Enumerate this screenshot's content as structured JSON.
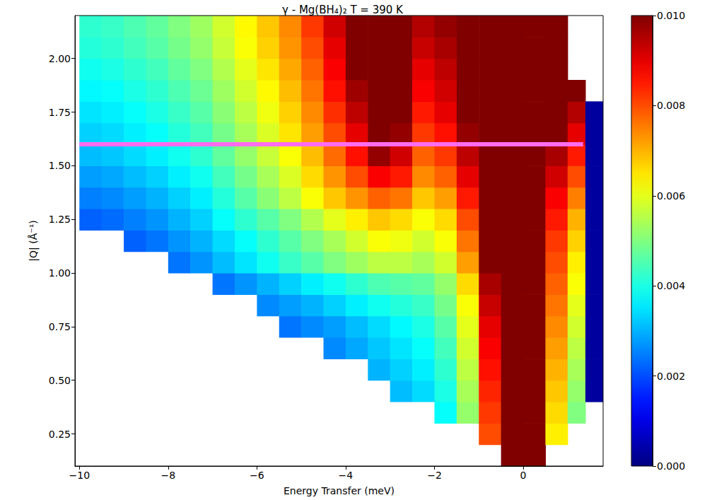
{
  "chart_data": {
    "type": "heatmap",
    "title": "γ - Mg(BH₄)₂ T = 390 K",
    "x_label": "Energy Transfer (meV)",
    "y_label": "|Q| (Å⁻¹)",
    "xlim": [
      -10.1,
      1.8
    ],
    "xticks": [
      {
        "value": -10,
        "label": "−10"
      },
      {
        "value": -8,
        "label": "−8"
      },
      {
        "value": -6,
        "label": "−6"
      },
      {
        "value": -4,
        "label": "−4"
      },
      {
        "value": -2,
        "label": "−2"
      },
      0
    ],
    "ylim": [
      0.1,
      2.2
    ],
    "yticks": [
      0.25,
      {
        "value": 0.5,
        "label": "0.50"
      },
      0.75,
      {
        "value": 1.0,
        "label": "1.00"
      },
      1.25,
      {
        "value": 1.5,
        "label": "1.50"
      },
      1.75,
      {
        "value": 2.0,
        "label": "2.00"
      }
    ],
    "x_edges": [
      -10,
      -9.5,
      -9,
      -8.5,
      -8,
      -7.5,
      -7,
      -6.5,
      -6,
      -5.5,
      -5,
      -4.5,
      -4,
      -3.5,
      -3,
      -2.5,
      -2,
      -1.5,
      -1,
      -0.5,
      0,
      0.5,
      1.0,
      1.4,
      1.8
    ],
    "y_edges": [
      0.1,
      0.2,
      0.3,
      0.4,
      0.5,
      0.6,
      0.7,
      0.8,
      0.9,
      1.0,
      1.1,
      1.2,
      1.3,
      1.4,
      1.5,
      1.6,
      1.7,
      1.8,
      1.9,
      2.0,
      2.1,
      2.2
    ],
    "cells": [
      [
        null,
        null,
        null,
        null,
        null,
        null,
        null,
        null,
        null,
        null,
        null,
        null,
        null,
        null,
        null,
        null,
        null,
        null,
        null,
        0.03,
        0.03,
        null,
        null,
        null
      ],
      [
        null,
        null,
        null,
        null,
        null,
        null,
        null,
        null,
        null,
        null,
        null,
        null,
        null,
        null,
        null,
        null,
        null,
        null,
        0.008,
        0.03,
        0.03,
        0.0064,
        null,
        null
      ],
      [
        null,
        null,
        null,
        null,
        null,
        null,
        null,
        null,
        null,
        null,
        null,
        null,
        null,
        null,
        null,
        null,
        0.0038,
        0.0052,
        0.0082,
        0.03,
        0.03,
        0.0066,
        0.005,
        null
      ],
      [
        null,
        null,
        null,
        null,
        null,
        null,
        null,
        null,
        null,
        null,
        null,
        null,
        null,
        null,
        0.0031,
        0.0034,
        0.004,
        0.0054,
        0.0084,
        0.03,
        0.03,
        0.0068,
        0.0052,
        0.0003
      ],
      [
        null,
        null,
        null,
        null,
        null,
        null,
        null,
        null,
        null,
        null,
        null,
        null,
        null,
        0.003,
        0.0033,
        0.0036,
        0.0042,
        0.0056,
        0.0086,
        0.03,
        0.03,
        0.007,
        0.0054,
        0.0003
      ],
      [
        null,
        null,
        null,
        null,
        null,
        null,
        null,
        null,
        null,
        null,
        null,
        0.0026,
        0.0029,
        0.0032,
        0.0035,
        0.0038,
        0.0044,
        0.0058,
        0.0088,
        0.03,
        0.03,
        0.0072,
        0.0056,
        0.0003
      ],
      [
        null,
        null,
        null,
        null,
        null,
        null,
        null,
        null,
        null,
        0.0024,
        0.0026,
        0.0028,
        0.0031,
        0.0034,
        0.0037,
        0.004,
        0.0046,
        0.006,
        0.009,
        0.03,
        0.03,
        0.0074,
        0.0058,
        0.0003
      ],
      [
        null,
        null,
        null,
        null,
        null,
        null,
        null,
        null,
        0.0026,
        0.0028,
        0.003,
        0.0033,
        0.0036,
        0.0039,
        0.0041,
        0.0043,
        0.0049,
        0.0062,
        0.0093,
        0.03,
        0.03,
        0.0076,
        0.006,
        0.0003
      ],
      [
        null,
        null,
        null,
        null,
        null,
        null,
        0.0024,
        0.0027,
        0.003,
        0.0033,
        0.0036,
        0.0039,
        0.0042,
        0.0045,
        0.0046,
        0.0047,
        0.0052,
        0.0066,
        0.0096,
        0.03,
        0.03,
        0.0078,
        0.0062,
        0.0003
      ],
      [
        null,
        null,
        null,
        null,
        0.0024,
        0.0027,
        0.0031,
        0.0035,
        0.0039,
        0.0043,
        0.0046,
        0.005,
        0.0053,
        0.0056,
        0.0056,
        0.0054,
        0.0058,
        0.0072,
        0.01,
        0.03,
        0.03,
        0.008,
        0.0064,
        0.0003
      ],
      [
        null,
        null,
        0.0022,
        0.0024,
        0.0027,
        0.003,
        0.0034,
        0.0038,
        0.0042,
        0.0046,
        0.005,
        0.0054,
        0.0058,
        0.0062,
        0.0061,
        0.0058,
        0.0062,
        0.0076,
        0.0105,
        0.03,
        0.03,
        0.0082,
        0.0067,
        0.0003
      ],
      [
        0.0022,
        0.0023,
        0.0025,
        0.0027,
        0.003,
        0.0033,
        0.0038,
        0.0042,
        0.0046,
        0.005,
        0.0055,
        0.006,
        0.0064,
        0.0068,
        0.0066,
        0.0062,
        0.0066,
        0.008,
        0.011,
        0.03,
        0.03,
        0.0085,
        0.007,
        0.0003
      ],
      [
        0.0025,
        0.0026,
        0.0028,
        0.003,
        0.0033,
        0.0036,
        0.0041,
        0.0046,
        0.0051,
        0.0056,
        0.0062,
        0.0068,
        0.0073,
        0.0078,
        0.0076,
        0.0068,
        0.0072,
        0.0085,
        0.012,
        0.03,
        0.03,
        0.0088,
        0.0075,
        0.0003
      ],
      [
        0.0028,
        0.0029,
        0.0031,
        0.0033,
        0.0036,
        0.0039,
        0.0044,
        0.0049,
        0.0054,
        0.0059,
        0.0066,
        0.0073,
        0.008,
        0.0088,
        0.0085,
        0.0074,
        0.0078,
        0.009,
        0.013,
        0.03,
        0.03,
        0.0092,
        0.008,
        0.0003
      ],
      [
        0.0031,
        0.0032,
        0.0034,
        0.0036,
        0.0039,
        0.0042,
        0.0047,
        0.0052,
        0.0057,
        0.0062,
        0.0069,
        0.0077,
        0.0086,
        0.0098,
        0.0092,
        0.0078,
        0.0082,
        0.0094,
        0.014,
        0.03,
        0.03,
        0.0096,
        0.0085,
        0.0003
      ],
      [
        0.0033,
        0.0034,
        0.0036,
        0.0038,
        0.0041,
        0.0044,
        0.0049,
        0.0054,
        0.0059,
        0.0065,
        0.0072,
        0.008,
        0.009,
        0.0108,
        0.0098,
        0.0082,
        0.0086,
        0.0098,
        0.015,
        0.03,
        0.03,
        0.01,
        0.009,
        0.0003
      ],
      [
        0.0035,
        0.0036,
        0.0038,
        0.004,
        0.0043,
        0.0046,
        0.0051,
        0.0056,
        0.0061,
        0.0067,
        0.0074,
        0.0083,
        0.0094,
        0.0118,
        0.0105,
        0.0085,
        0.009,
        0.0102,
        0.015,
        0.03,
        0.03,
        0.0105,
        0.0095,
        0.0003
      ],
      [
        0.0037,
        0.0038,
        0.004,
        0.0042,
        0.0045,
        0.0048,
        0.0053,
        0.0058,
        0.0063,
        0.0069,
        0.0076,
        0.0086,
        0.0097,
        0.0125,
        0.0112,
        0.0088,
        0.0092,
        0.0106,
        0.015,
        0.03,
        0.03,
        0.011,
        0.01,
        null
      ],
      [
        0.0039,
        0.004,
        0.0042,
        0.0044,
        0.0047,
        0.005,
        0.0055,
        0.006,
        0.0065,
        0.0071,
        0.0078,
        0.0088,
        0.01,
        0.013,
        0.0118,
        0.009,
        0.0094,
        0.011,
        0.015,
        0.03,
        0.03,
        0.0115,
        null,
        null
      ],
      [
        0.0041,
        0.0042,
        0.0044,
        0.0046,
        0.0049,
        0.0052,
        0.0057,
        0.0062,
        0.0067,
        0.0073,
        0.008,
        0.009,
        0.0102,
        0.0135,
        0.012,
        0.0093,
        0.0096,
        0.0112,
        0.015,
        0.03,
        0.03,
        0.0118,
        null,
        null
      ],
      [
        0.0042,
        0.0043,
        0.0045,
        0.0047,
        0.005,
        0.0053,
        0.0058,
        0.0063,
        0.0068,
        0.0074,
        0.0082,
        0.0092,
        0.0105,
        0.014,
        0.0125,
        0.0095,
        0.0098,
        0.0115,
        0.015,
        0.03,
        0.03,
        0.012,
        null,
        null
      ]
    ],
    "colorbar": {
      "lim": [
        0,
        0.01
      ],
      "ticks": [
        {
          "value": 0,
          "label": "0.000"
        },
        {
          "value": 0.002,
          "label": "0.002"
        },
        {
          "value": 0.004,
          "label": "0.004"
        },
        {
          "value": 0.006,
          "label": "0.006"
        },
        {
          "value": 0.008,
          "label": "0.008"
        },
        {
          "value": 0.01,
          "label": "0.010"
        }
      ]
    },
    "lines": [
      {
        "y": 1.6,
        "x": [
          -10,
          1.35
        ],
        "color": "#ff6cf0"
      }
    ]
  }
}
